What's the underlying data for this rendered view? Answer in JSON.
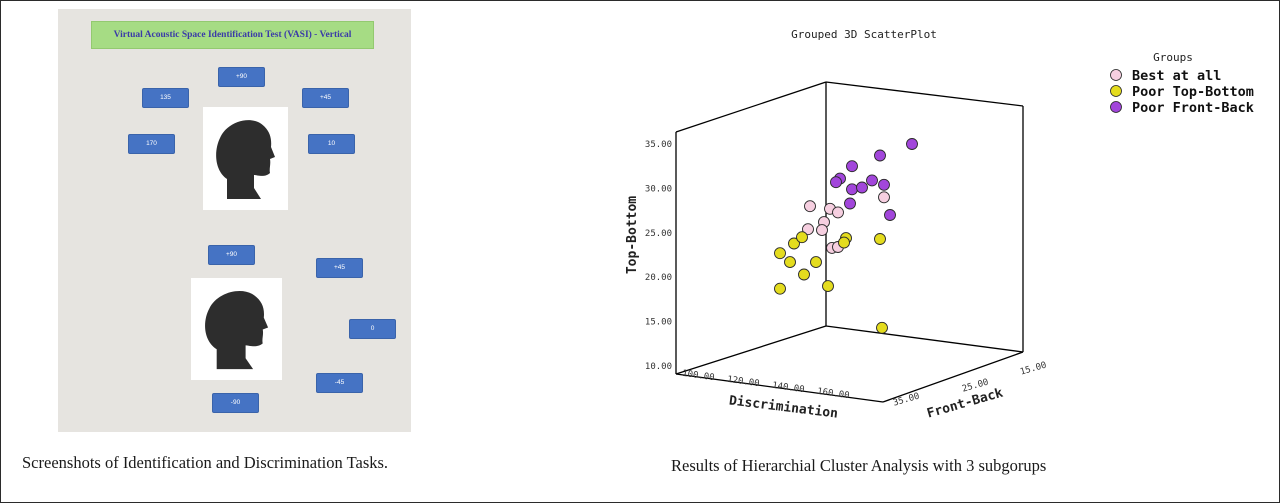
{
  "left_panel": {
    "banner": "Virtual Acoustic Space Identification Test (VASI) - Vertical",
    "identification_buttons": [
      "+90",
      "135",
      "+45",
      "170",
      "10"
    ],
    "discrimination_buttons": [
      "+90",
      "+45",
      "0",
      "-45",
      "-90"
    ],
    "caption": "Screenshots of Identification and Discrimination Tasks."
  },
  "right_caption": "Results of Hierarchial Cluster Analysis with 3 subgorups",
  "chart_data": {
    "type": "scatter",
    "title": "Grouped 3D ScatterPlot",
    "xlabel": "Discrimination",
    "ylabel": "Top-Bottom",
    "zlabel": "Front-Back",
    "x_ticks": [
      "100.00",
      "120.00",
      "140.00",
      "160.00"
    ],
    "y_ticks": [
      "10.00",
      "15.00",
      "20.00",
      "25.00",
      "30.00",
      "35.00"
    ],
    "z_ticks": [
      "15.00",
      "25.00",
      "35.00"
    ],
    "ylim": [
      10,
      35
    ],
    "legend_title": "Groups",
    "legend_position": "top-right",
    "series": [
      {
        "name": "Best at all",
        "color": "#f6cfe0",
        "points": [
          [
            125,
            28
          ],
          [
            124,
            25.4
          ],
          [
            132,
            26.2
          ],
          [
            135,
            27.7
          ],
          [
            139,
            27.3
          ],
          [
            131,
            25.3
          ],
          [
            136,
            23.3
          ],
          [
            139,
            23.4
          ],
          [
            162,
            29
          ]
        ]
      },
      {
        "name": "Poor Top-Bottom",
        "color": "#e4dc1e",
        "points": [
          [
            110,
            22.7
          ],
          [
            117,
            23.8
          ],
          [
            121,
            24.5
          ],
          [
            115,
            21.7
          ],
          [
            122,
            20.3
          ],
          [
            128,
            21.7
          ],
          [
            110,
            18.7
          ],
          [
            134,
            19
          ],
          [
            143,
            24.4
          ],
          [
            142,
            23.9
          ],
          [
            160,
            24.3
          ],
          [
            161,
            14.3
          ]
        ]
      },
      {
        "name": "Poor Front-Back",
        "color": "#a246db",
        "points": [
          [
            140,
            31.1
          ],
          [
            138,
            30.7
          ],
          [
            146,
            32.5
          ],
          [
            146,
            29.9
          ],
          [
            151,
            30.1
          ],
          [
            156,
            30.9
          ],
          [
            160,
            33.7
          ],
          [
            162,
            30.4
          ],
          [
            165,
            27
          ],
          [
            145,
            28.3
          ],
          [
            176,
            35
          ]
        ]
      }
    ]
  }
}
